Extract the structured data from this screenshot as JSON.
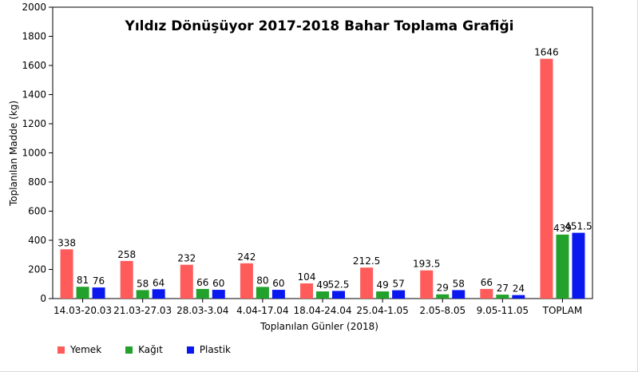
{
  "chart_data": {
    "type": "bar",
    "title": "Yıldız Dönüşüyor 2017-2018 Bahar Toplama Grafiği",
    "xlabel": "Toplanılan Günler (2018)",
    "ylabel": "Toplanılan Madde (kg)",
    "ylim": [
      0,
      2000
    ],
    "yticks": [
      "0",
      "200",
      "400",
      "600",
      "800",
      "1000",
      "1200",
      "1400",
      "1600",
      "1800",
      "2000"
    ],
    "grid": false,
    "legend_position": "bottom-left",
    "categories": [
      "14.03-20.03",
      "21.03-27.03",
      "28.03-3.04",
      "4.04-17.04",
      "18.04-24.04",
      "25.04-1.05",
      "2.05-8.05",
      "9.05-11.05",
      "TOPLAM"
    ],
    "series": [
      {
        "name": "Yemek",
        "color": "#ff5b5b",
        "values": [
          338,
          258,
          232,
          242,
          104,
          212.5,
          193.5,
          66,
          1646
        ],
        "labels": [
          "338",
          "258",
          "232",
          "242",
          "104",
          "212.5",
          "193.5",
          "66",
          "1646"
        ]
      },
      {
        "name": "Kağıt",
        "color": "#22a12c",
        "values": [
          81,
          58,
          66,
          80,
          49,
          49,
          29,
          27,
          439
        ],
        "labels": [
          "81",
          "58",
          "66",
          "80",
          "49",
          "49",
          "29",
          "27",
          "439"
        ]
      },
      {
        "name": "Plastik",
        "color": "#0a18f0",
        "values": [
          76,
          64,
          60,
          60,
          52.5,
          57,
          58,
          24,
          451.5
        ],
        "labels": [
          "76",
          "64",
          "60",
          "60",
          "52.5",
          "57",
          "58",
          "24",
          "451.5"
        ]
      }
    ]
  }
}
